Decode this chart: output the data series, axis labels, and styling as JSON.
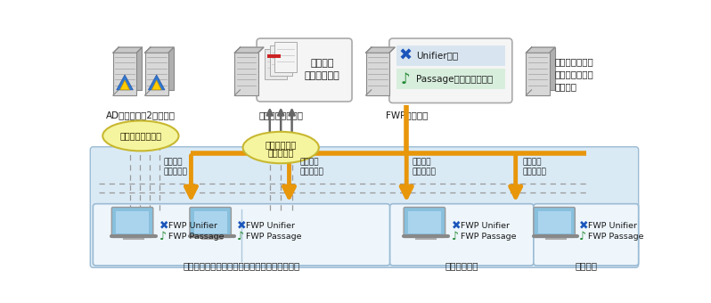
{
  "bg": "#ffffff",
  "light_blue": "#daeaf5",
  "orange": "#e8960a",
  "yellow_fill": "#f5f5a0",
  "yellow_stroke": "#c8b830",
  "client_fill": "#eef6fc",
  "client_stroke": "#9bbbd4",
  "server_fill_dark": "#b0b0b0",
  "server_fill_light": "#d8d8d8",
  "server_stroke": "#888888",
  "box_fill": "#f5f5f5",
  "box_stroke": "#aaaaaa",
  "text_dark": "#1a1a1a",
  "blue_icon": "#1a55bb",
  "green_icon": "#228833",
  "monitor_fill": "#88c0dd",
  "row1_fill": "#d8e5f0",
  "row2_fill": "#d8eedd",
  "divider": "#b0c8dc",
  "gray_dash": "#999999",
  "ad_label": "ADサーバー（2台構成）",
  "file_label": "ファイルサーバー",
  "fwp_label": "FWPサーバー",
  "av_label": "ウイルス対策／\nグループウェア\nサーバー",
  "client1_label": "匝瑳市横芝光町消防組合消防本部・匝瑳消防署",
  "client2_label": "横芝光消防署",
  "client3_label": "野栄分署",
  "patch_label": "パッチ／\nソフト配布",
  "domain_label": "ドメインログオン",
  "profile_label1": "プロファイル",
  "profile_label2": "参照・更新",
  "user_profile": "ユーザー\nプロファイル",
  "unifier_label": "Unifier管理",
  "passage_label": "Passageライセンス管理",
  "fwp_unifier": "FWP Unifier",
  "fwp_passage": "FWP Passage"
}
